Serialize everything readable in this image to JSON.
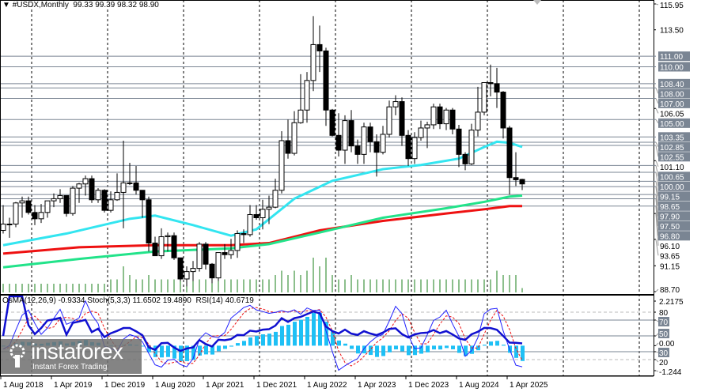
{
  "header": {
    "symbol": "#USDX,Monthly",
    "open": "99.33",
    "high": "99.39",
    "low": "98.32",
    "close": "98.90"
  },
  "indicators": {
    "osma": "OsMA(12,26,9) -0.9334",
    "stoch": "Stoch(5,3,3) 11.6502 19.4890",
    "rsi": "RSI(14) 40.6719"
  },
  "logo": {
    "name": "instaforex",
    "tagline": "Instant Forex Trading"
  },
  "colors": {
    "ma_fast": "#33e5f0",
    "ma_mid": "#22e38a",
    "ma_slow": "#ee1111",
    "histogram": "#1ec0f5",
    "rsi": "#1010d0",
    "stoch_main": "#2222ff",
    "stoch_signal": "#ee1111",
    "level": "#7a8593",
    "volume": "#1a7f1a"
  },
  "chart_data": {
    "type": "candlestick",
    "title": "#USDX,Monthly",
    "ylim": [
      88.7,
      115.95
    ],
    "start_month": "Aug 2018",
    "price_ticks": [
      "115.95",
      "113.50",
      "106.05",
      "101.10",
      "96.10",
      "93.65",
      "91.15",
      "88.70"
    ],
    "levels": [
      "111.00",
      "110.00",
      "108.40",
      "108.00",
      "107.00",
      "105.00",
      "103.35",
      "102.85",
      "102.55",
      "100.65",
      "100.00",
      "99.15",
      "98.65",
      "97.90",
      "97.50",
      "96.80"
    ],
    "time_labels": [
      {
        "month_index": 0,
        "label": "1 Aug 2018"
      },
      {
        "month_index": 8,
        "label": "1 Apr 2019"
      },
      {
        "month_index": 16,
        "label": "1 Dec 2019"
      },
      {
        "month_index": 24,
        "label": "1 Aug 2020"
      },
      {
        "month_index": 32,
        "label": "1 Apr 2021"
      },
      {
        "month_index": 40,
        "label": "1 Dec 2021"
      },
      {
        "month_index": 48,
        "label": "1 Aug 2022"
      },
      {
        "month_index": 56,
        "label": "1 Apr 2023"
      },
      {
        "month_index": 64,
        "label": "1 Dec 2023"
      },
      {
        "month_index": 72,
        "label": "1 Aug 2024"
      },
      {
        "month_index": 80,
        "label": "1 Apr 2025"
      }
    ],
    "ohlc": [
      [
        94.5,
        96.9,
        94.2,
        95.1
      ],
      [
        95.1,
        95.7,
        93.8,
        95.1
      ],
      [
        95.1,
        97.2,
        94.8,
        97.1
      ],
      [
        97.1,
        97.7,
        95.7,
        97.3
      ],
      [
        97.3,
        97.7,
        96.0,
        96.2
      ],
      [
        96.2,
        96.9,
        95.0,
        95.6
      ],
      [
        95.6,
        97.0,
        95.2,
        96.2
      ],
      [
        96.2,
        97.3,
        95.7,
        97.3
      ],
      [
        97.3,
        98.0,
        96.7,
        97.5
      ],
      [
        97.5,
        98.4,
        97.1,
        97.8
      ],
      [
        97.8,
        97.8,
        95.8,
        96.1
      ],
      [
        96.1,
        98.7,
        95.9,
        98.5
      ],
      [
        98.5,
        99.0,
        97.1,
        98.9
      ],
      [
        98.9,
        99.7,
        97.8,
        99.4
      ],
      [
        99.4,
        99.7,
        97.1,
        97.4
      ],
      [
        97.4,
        98.5,
        97.1,
        98.3
      ],
      [
        98.3,
        98.4,
        96.2,
        96.4
      ],
      [
        96.4,
        98.2,
        96.2,
        97.4
      ],
      [
        97.4,
        99.9,
        97.3,
        98.1
      ],
      [
        98.1,
        103.0,
        94.7,
        99.0
      ],
      [
        99.0,
        100.9,
        98.8,
        99.0
      ],
      [
        99.0,
        100.6,
        97.9,
        98.3
      ],
      [
        98.3,
        98.3,
        95.7,
        97.4
      ],
      [
        97.4,
        97.7,
        92.5,
        93.3
      ],
      [
        93.3,
        93.9,
        92.1,
        92.1
      ],
      [
        92.1,
        94.7,
        91.8,
        93.9
      ],
      [
        93.9,
        94.3,
        92.5,
        94.0
      ],
      [
        94.0,
        94.3,
        91.7,
        91.9
      ],
      [
        91.9,
        91.9,
        89.7,
        89.9
      ],
      [
        89.9,
        91.1,
        89.2,
        90.6
      ],
      [
        90.6,
        91.6,
        89.7,
        90.9
      ],
      [
        90.9,
        93.4,
        90.6,
        93.2
      ],
      [
        93.2,
        93.4,
        90.8,
        91.3
      ],
      [
        91.3,
        91.4,
        89.5,
        90.0
      ],
      [
        90.0,
        92.4,
        89.7,
        92.4
      ],
      [
        92.4,
        93.2,
        91.8,
        92.2
      ],
      [
        92.2,
        93.7,
        91.8,
        92.6
      ],
      [
        92.6,
        94.5,
        91.9,
        94.2
      ],
      [
        94.2,
        94.6,
        93.3,
        94.1
      ],
      [
        94.1,
        96.9,
        93.9,
        96.0
      ],
      [
        96.0,
        96.9,
        95.5,
        95.7
      ],
      [
        95.7,
        97.4,
        94.6,
        96.5
      ],
      [
        96.5,
        97.8,
        95.1,
        96.7
      ],
      [
        96.7,
        99.4,
        96.6,
        98.3
      ],
      [
        98.3,
        103.9,
        98.0,
        103.0
      ],
      [
        103.0,
        105.0,
        101.3,
        101.8
      ],
      [
        101.8,
        105.8,
        101.6,
        104.7
      ],
      [
        104.7,
        109.3,
        104.6,
        105.9
      ],
      [
        105.9,
        109.5,
        104.7,
        108.7
      ],
      [
        108.7,
        114.8,
        107.7,
        112.1
      ],
      [
        112.1,
        113.9,
        109.5,
        111.5
      ],
      [
        111.5,
        111.8,
        104.4,
        105.9
      ],
      [
        105.9,
        106.0,
        103.4,
        103.5
      ],
      [
        103.5,
        105.6,
        101.5,
        102.1
      ],
      [
        102.1,
        105.4,
        100.8,
        104.9
      ],
      [
        104.9,
        105.9,
        101.9,
        102.5
      ],
      [
        102.5,
        103.1,
        100.8,
        101.7
      ],
      [
        101.7,
        104.7,
        100.8,
        104.3
      ],
      [
        104.3,
        104.7,
        101.9,
        102.9
      ],
      [
        102.9,
        103.6,
        99.6,
        101.9
      ],
      [
        101.9,
        104.4,
        101.7,
        103.6
      ],
      [
        103.6,
        106.8,
        103.3,
        106.2
      ],
      [
        106.2,
        107.3,
        105.4,
        106.7
      ],
      [
        106.7,
        107.1,
        102.5,
        103.5
      ],
      [
        103.5,
        104.0,
        100.6,
        101.3
      ],
      [
        101.3,
        103.8,
        100.8,
        103.3
      ],
      [
        103.3,
        104.9,
        103.0,
        104.2
      ],
      [
        104.2,
        104.8,
        102.3,
        104.5
      ],
      [
        104.5,
        106.5,
        104.1,
        106.2
      ],
      [
        106.2,
        106.5,
        104.1,
        104.6
      ],
      [
        104.6,
        106.1,
        104.0,
        105.9
      ],
      [
        105.9,
        106.1,
        103.6,
        104.1
      ],
      [
        104.1,
        104.5,
        100.5,
        101.7
      ],
      [
        101.7,
        101.9,
        100.2,
        100.8
      ],
      [
        100.8,
        104.6,
        100.7,
        104.0
      ],
      [
        104.0,
        108.1,
        103.4,
        105.7
      ],
      [
        105.7,
        108.5,
        105.4,
        108.5
      ],
      [
        108.5,
        110.2,
        107.2,
        108.4
      ],
      [
        108.4,
        109.9,
        106.1,
        107.6
      ],
      [
        107.6,
        107.7,
        103.2,
        104.2
      ],
      [
        104.2,
        104.4,
        97.9,
        99.5
      ],
      [
        99.5,
        101.9,
        98.7,
        99.3
      ],
      [
        99.33,
        99.39,
        98.32,
        98.9
      ]
    ],
    "volume": [
      2,
      2,
      2,
      2,
      2,
      2,
      2,
      2,
      2,
      2,
      2,
      2,
      2,
      2,
      2,
      2,
      2,
      3,
      3,
      6,
      4,
      3,
      3,
      4,
      3,
      3,
      3,
      3,
      3,
      3,
      3,
      3,
      3,
      3,
      3,
      3,
      3,
      3,
      3,
      3,
      3,
      3,
      3,
      4,
      5,
      4,
      5,
      4,
      5,
      8,
      6,
      8,
      4,
      3,
      3,
      4,
      3,
      3,
      3,
      3,
      3,
      3,
      3,
      3,
      3,
      3,
      3,
      3,
      3,
      3,
      3,
      3,
      3,
      3,
      3,
      3,
      3,
      3,
      5,
      4,
      4,
      4,
      1
    ],
    "ma_fast": [
      [
        0,
        93.1
      ],
      [
        10,
        94.2
      ],
      [
        20,
        95.6
      ],
      [
        24,
        95.9
      ],
      [
        30,
        95.0
      ],
      [
        36,
        94.0
      ],
      [
        40,
        94.6
      ],
      [
        46,
        97.5
      ],
      [
        52,
        99.2
      ],
      [
        60,
        100.3
      ],
      [
        66,
        100.7
      ],
      [
        72,
        101.3
      ],
      [
        76,
        102.4
      ],
      [
        78,
        102.9
      ],
      [
        80,
        102.8
      ],
      [
        82,
        102.4
      ]
    ],
    "ma_mid": [
      [
        0,
        91.0
      ],
      [
        12,
        91.8
      ],
      [
        24,
        92.5
      ],
      [
        36,
        92.8
      ],
      [
        42,
        93.2
      ],
      [
        50,
        94.3
      ],
      [
        60,
        95.7
      ],
      [
        70,
        96.6
      ],
      [
        76,
        97.2
      ],
      [
        80,
        97.7
      ],
      [
        82,
        97.8
      ]
    ],
    "ma_slow": [
      [
        0,
        92.3
      ],
      [
        12,
        92.9
      ],
      [
        24,
        93.1
      ],
      [
        36,
        93.1
      ],
      [
        42,
        93.3
      ],
      [
        50,
        94.5
      ],
      [
        60,
        95.4
      ],
      [
        70,
        96.1
      ],
      [
        76,
        96.5
      ],
      [
        80,
        96.8
      ],
      [
        82,
        96.8
      ]
    ],
    "osc_panel": {
      "osma_range": [
        -1.244,
        2.2175
      ],
      "osc_ticks": [
        "2.2175",
        "80",
        "70",
        "50",
        "0.00",
        "30",
        "20",
        "-1.244"
      ]
    }
  }
}
